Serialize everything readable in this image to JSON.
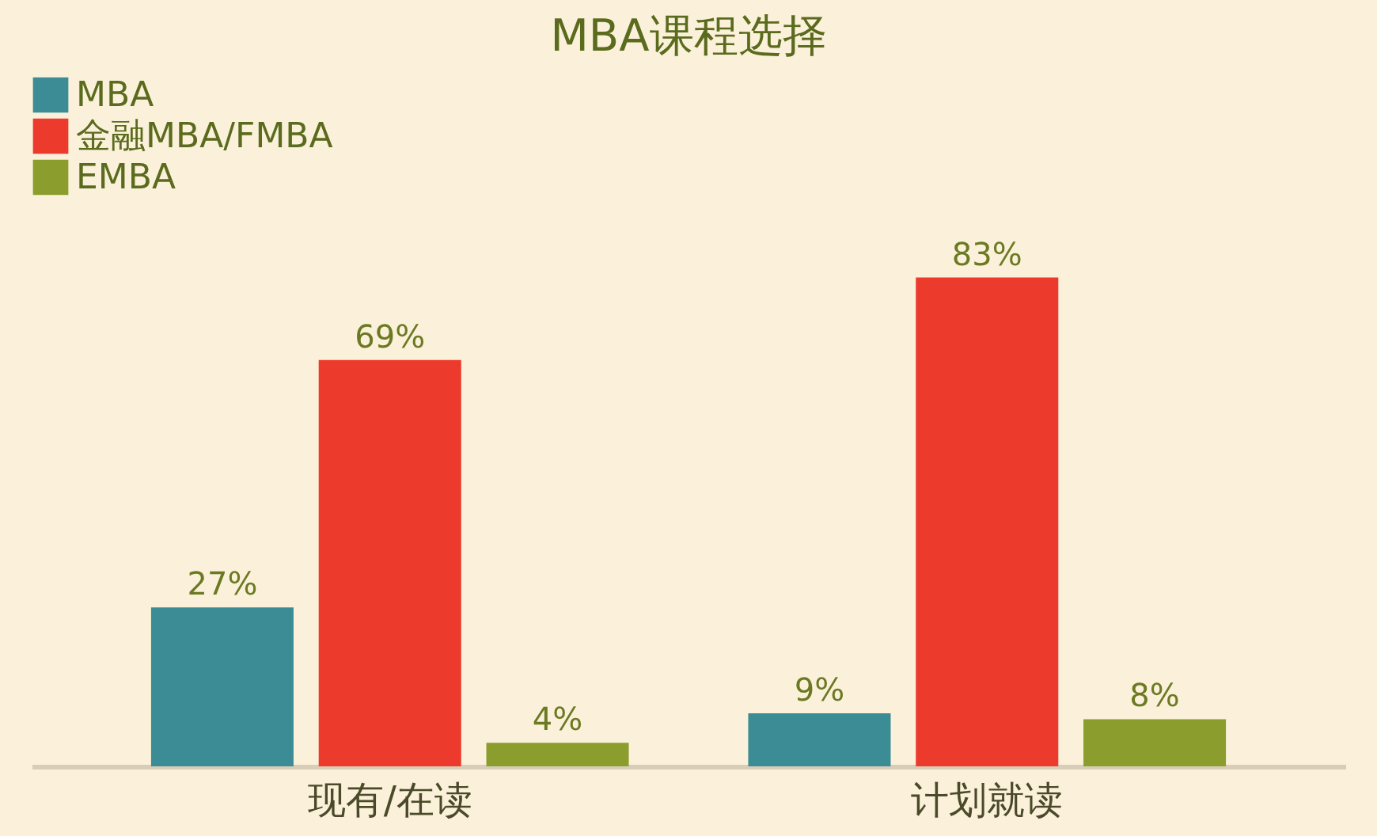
{
  "chart_data": {
    "type": "bar",
    "title": "MBA课程选择",
    "categories": [
      "现有/在读",
      "计划就读"
    ],
    "series": [
      {
        "name": "MBA",
        "color": "#3b8c95",
        "values": [
          27,
          9
        ],
        "value_labels": [
          "27%",
          "9%"
        ]
      },
      {
        "name": "金融MBA/FMBA",
        "color": "#ec3a2c",
        "values": [
          69,
          83
        ],
        "value_labels": [
          "69%",
          "83%"
        ]
      },
      {
        "name": "EMBA",
        "color": "#8b9d2c",
        "values": [
          4,
          8
        ],
        "value_labels": [
          "4%",
          "8%"
        ]
      }
    ],
    "legend": "top",
    "grid": false
  }
}
